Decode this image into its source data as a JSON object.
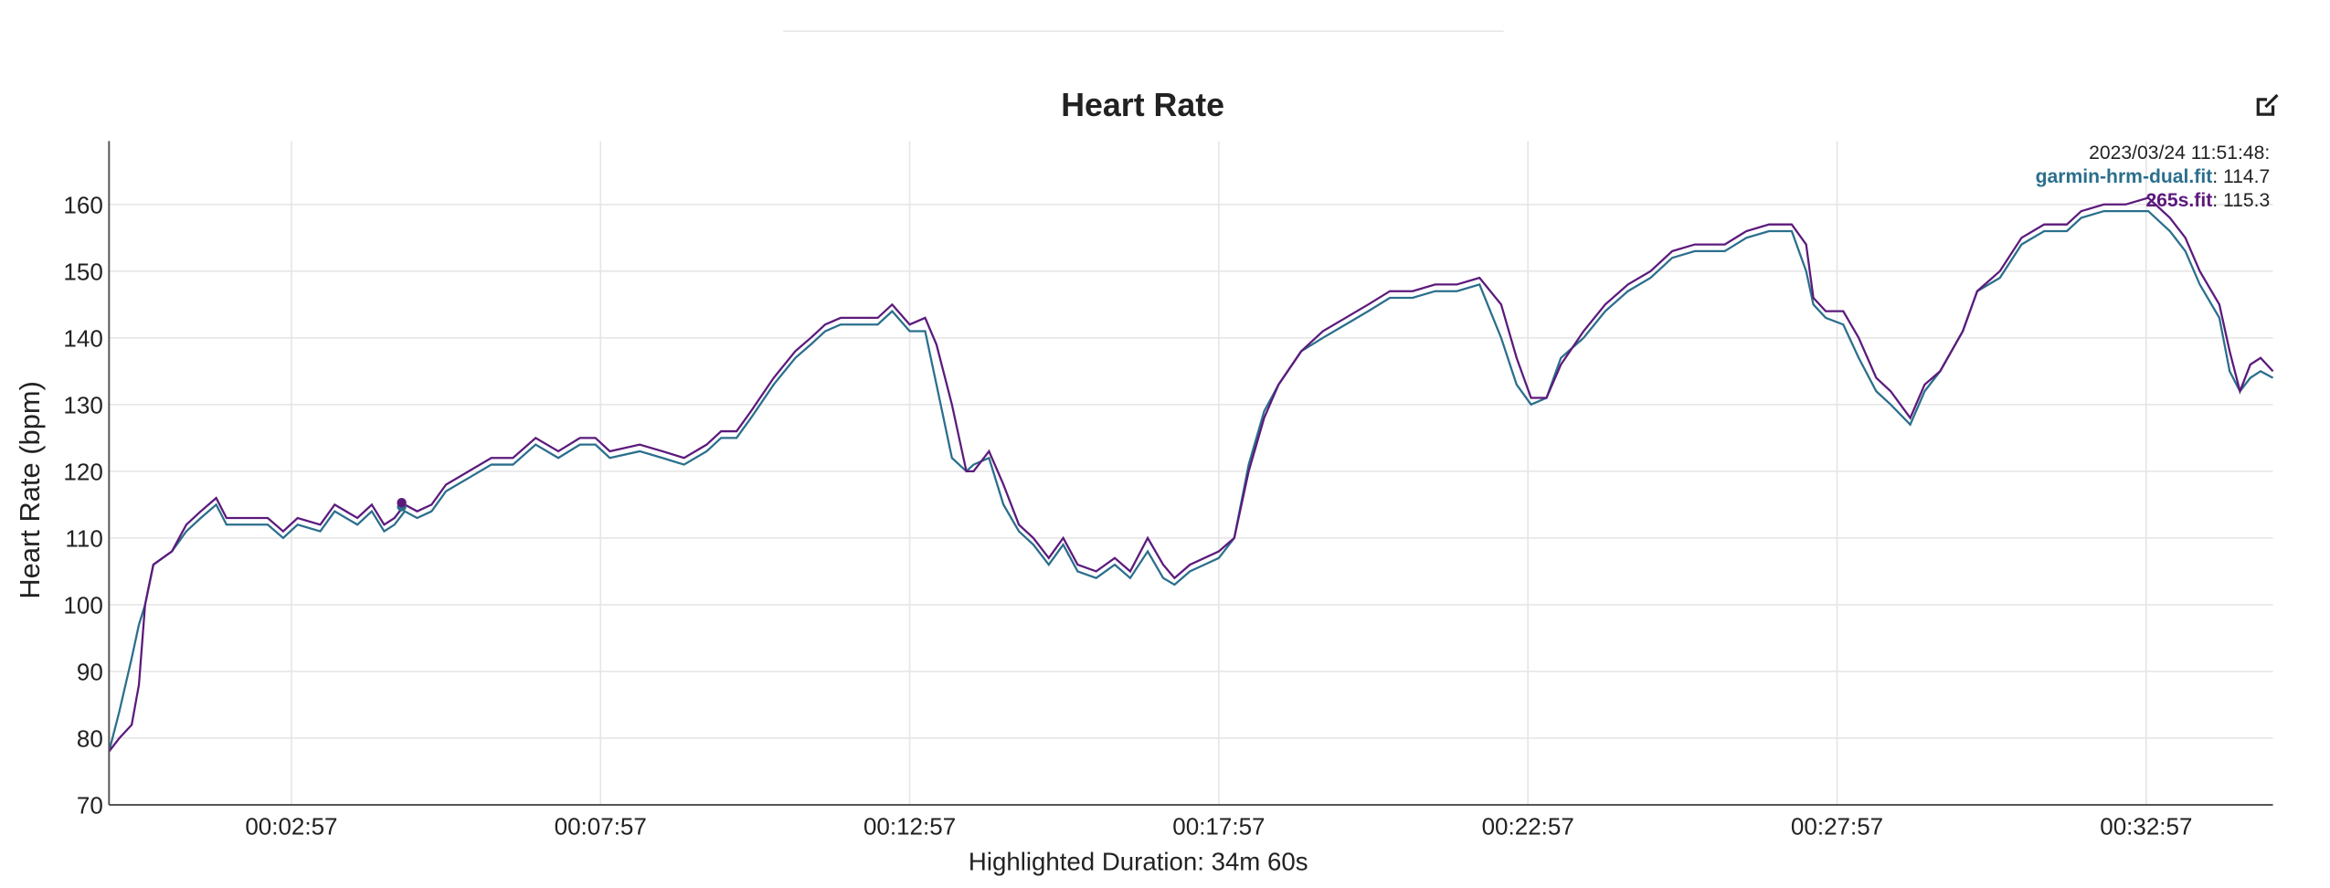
{
  "chart_data": {
    "type": "line",
    "title": "Heart Rate",
    "y_label": "Heart Rate (bpm)",
    "x_label": "Highlighted Duration: 34m 60s",
    "xlim": [
      0,
      2100
    ],
    "ylim": [
      70,
      169.5
    ],
    "yticks": [
      70,
      80,
      90,
      100,
      110,
      120,
      130,
      140,
      150,
      160
    ],
    "xticks": [
      {
        "value": 177,
        "label": "00:02:57"
      },
      {
        "value": 477,
        "label": "00:07:57"
      },
      {
        "value": 777,
        "label": "00:12:57"
      },
      {
        "value": 1077,
        "label": "00:17:57"
      },
      {
        "value": 1377,
        "label": "00:22:57"
      },
      {
        "value": 1677,
        "label": "00:27:57"
      },
      {
        "value": 1977,
        "label": "00:32:57"
      }
    ],
    "grid": true,
    "x": [
      0,
      10,
      22,
      29,
      35,
      43,
      61,
      75,
      89,
      104,
      114,
      133,
      154,
      169,
      183,
      205,
      219,
      241,
      255,
      267,
      277,
      287,
      299,
      313,
      327,
      349,
      371,
      392,
      414,
      436,
      457,
      472,
      486,
      515,
      537,
      558,
      580,
      594,
      609,
      623,
      645,
      666,
      681,
      695,
      710,
      731,
      746,
      760,
      777,
      792,
      803,
      818,
      832,
      839,
      854,
      868,
      883,
      897,
      912,
      926,
      940,
      958,
      976,
      991,
      1008,
      1023,
      1034,
      1049,
      1063,
      1077,
      1092,
      1106,
      1121,
      1135,
      1157,
      1178,
      1200,
      1222,
      1243,
      1265,
      1287,
      1308,
      1330,
      1351,
      1366,
      1380,
      1395,
      1409,
      1431,
      1452,
      1474,
      1496,
      1517,
      1539,
      1568,
      1589,
      1611,
      1633,
      1647,
      1654,
      1666,
      1683,
      1698,
      1715,
      1729,
      1748,
      1762,
      1777,
      1799,
      1813,
      1835,
      1856,
      1878,
      1900,
      1914,
      1936,
      1957,
      1979,
      2000,
      2015,
      2029,
      2048,
      2058,
      2068,
      2078,
      2088,
      2100
    ],
    "series": [
      {
        "name": "garmin-hrm-dual.fit",
        "color": "#2b6f8c",
        "values": [
          78,
          84,
          92,
          97,
          100,
          106,
          108,
          111,
          113,
          115,
          112,
          112,
          112,
          110,
          112,
          111,
          114,
          112,
          114,
          111,
          112,
          114,
          113,
          114,
          117,
          119,
          121,
          121,
          124,
          122,
          124,
          124,
          122,
          123,
          122,
          121,
          123,
          125,
          125,
          128,
          133,
          137,
          139,
          141,
          142,
          142,
          142,
          144,
          141,
          141,
          133,
          122,
          120,
          121,
          122,
          115,
          111,
          109,
          106,
          109,
          105,
          104,
          106,
          104,
          108,
          104,
          103,
          105,
          106,
          107,
          110,
          121,
          129,
          133,
          138,
          140,
          142,
          144,
          146,
          146,
          147,
          147,
          148,
          140,
          133,
          130,
          131,
          137,
          140,
          144,
          147,
          149,
          152,
          153,
          153,
          155,
          156,
          156,
          150,
          145,
          143,
          142,
          137,
          132,
          130,
          127,
          132,
          135,
          141,
          147,
          149,
          154,
          156,
          156,
          158,
          159,
          159,
          159,
          156,
          153,
          148,
          143,
          135,
          132,
          134,
          135,
          134
        ]
      },
      {
        "name": "265s.fit",
        "color": "#5c1a7c",
        "values": [
          78,
          80,
          82,
          88,
          100,
          106,
          108,
          112,
          114,
          116,
          113,
          113,
          113,
          111,
          113,
          112,
          115,
          113,
          115,
          112,
          113,
          115,
          114,
          115,
          118,
          120,
          122,
          122,
          125,
          123,
          125,
          125,
          123,
          124,
          123,
          122,
          124,
          126,
          126,
          129,
          134,
          138,
          140,
          142,
          143,
          143,
          143,
          145,
          142,
          143,
          139,
          130,
          120,
          120,
          123,
          118,
          112,
          110,
          107,
          110,
          106,
          105,
          107,
          105,
          110,
          106,
          104,
          106,
          107,
          108,
          110,
          120,
          128,
          133,
          138,
          141,
          143,
          145,
          147,
          147,
          148,
          148,
          149,
          145,
          137,
          131,
          131,
          136,
          141,
          145,
          148,
          150,
          153,
          154,
          154,
          156,
          157,
          157,
          154,
          146,
          144,
          144,
          140,
          134,
          132,
          128,
          133,
          135,
          141,
          147,
          150,
          155,
          157,
          157,
          159,
          160,
          160,
          161,
          158,
          155,
          150,
          145,
          138,
          132,
          136,
          137,
          135
        ]
      }
    ],
    "tooltip": {
      "time": "2023/03/24 11:51:48:",
      "x": 284,
      "separator": ": ",
      "values": [
        114.7,
        115.3
      ]
    }
  }
}
